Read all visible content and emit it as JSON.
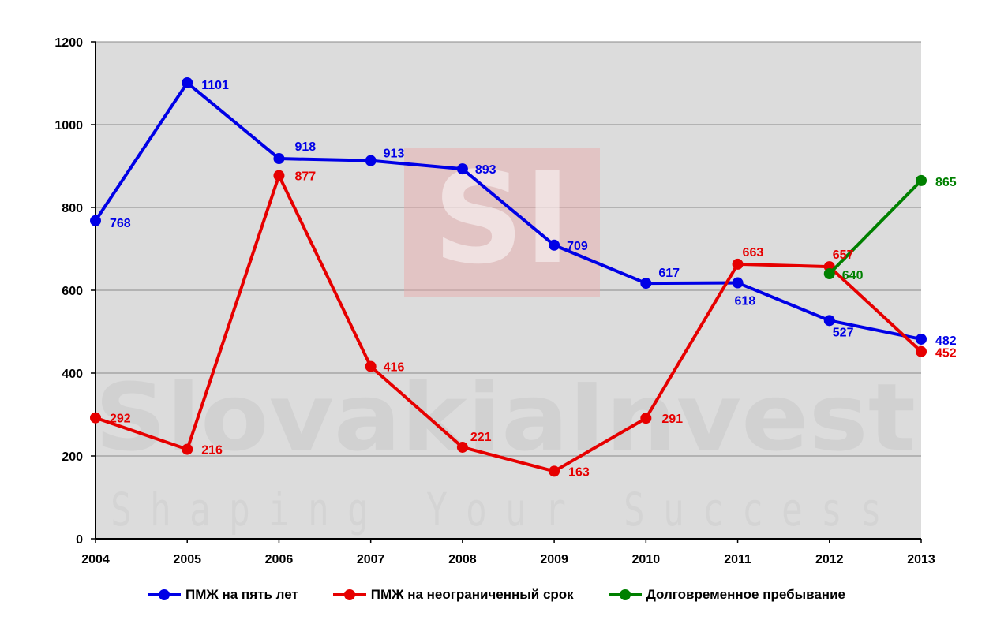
{
  "watermark": {
    "logo_text": "SI",
    "brand": "SlovakiaInvest",
    "slogan": "Shaping Your Success"
  },
  "chart_data": {
    "type": "line",
    "title": "",
    "xlabel": "",
    "ylabel": "",
    "x": [
      "2004",
      "2005",
      "2006",
      "2007",
      "2008",
      "2009",
      "2010",
      "2011",
      "2012",
      "2013"
    ],
    "ylim": [
      0,
      1200
    ],
    "yticks": [
      0,
      200,
      400,
      600,
      800,
      1000,
      1200
    ],
    "grid": true,
    "legend_position": "bottom",
    "plot_background": "#dcdcdc",
    "series": [
      {
        "name": "ПМЖ на пять лет",
        "color": "#0000e6",
        "values": [
          768,
          1101,
          918,
          913,
          893,
          709,
          617,
          618,
          527,
          482
        ]
      },
      {
        "name": "ПМЖ на неограниченный срок",
        "color": "#e60000",
        "values": [
          292,
          216,
          877,
          416,
          221,
          163,
          291,
          663,
          657,
          452
        ]
      },
      {
        "name": "Долговременное пребывание",
        "color": "#008000",
        "values": [
          null,
          null,
          null,
          null,
          null,
          null,
          null,
          null,
          640,
          865
        ]
      }
    ]
  }
}
